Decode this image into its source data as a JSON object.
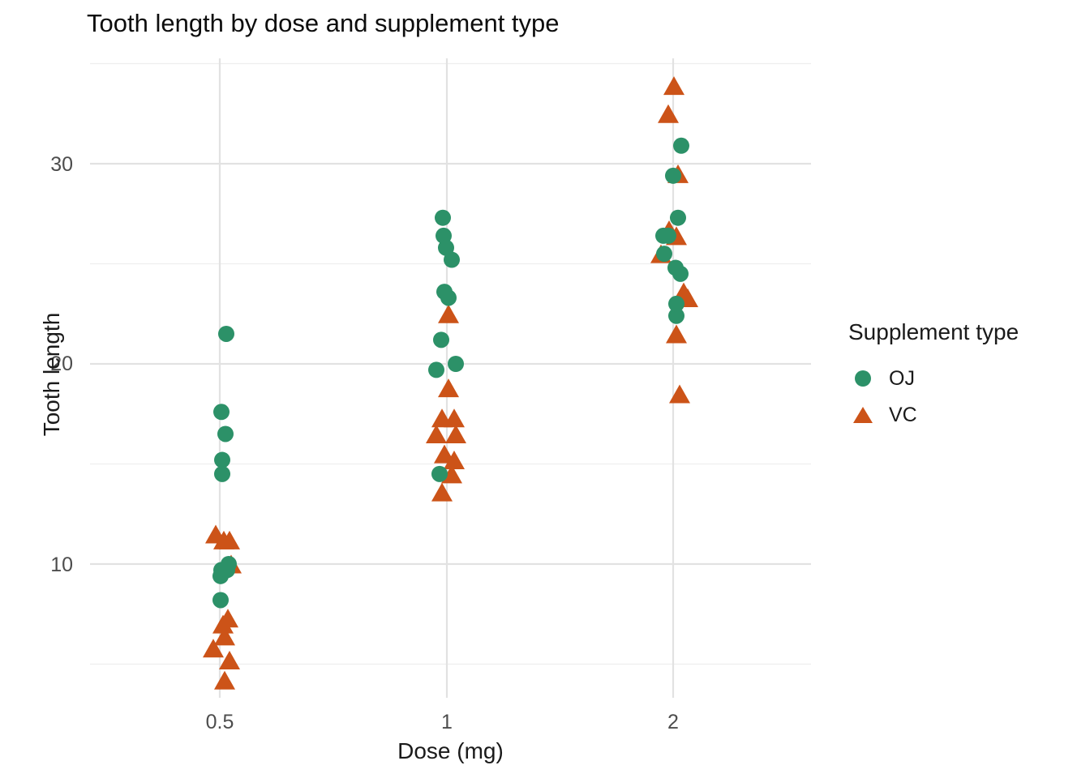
{
  "title": "Tooth length by dose and supplement type",
  "x_axis": {
    "label": "Dose (mg)",
    "ticks": [
      "0.5",
      "1",
      "2"
    ]
  },
  "y_axis": {
    "label": "Tooth length",
    "ticks": [
      "10",
      "20",
      "30"
    ]
  },
  "legend": {
    "title": "Supplement type",
    "items": [
      {
        "label": "OJ",
        "shape": "circle",
        "color": "#2c9168"
      },
      {
        "label": "VC",
        "shape": "triangle",
        "color": "#cc5318"
      }
    ]
  },
  "colors": {
    "background": "#ffffff",
    "grid_major": "#e2e2e2",
    "grid_minor": "#eeeeee",
    "tick_label": "#4d4d4d",
    "text": "#1a1a1a",
    "oj_green": "#2c9168",
    "vc_orange": "#cc5318"
  },
  "chart_data": {
    "type": "scatter",
    "title": "Tooth length by dose and supplement type",
    "xlabel": "Dose (mg)",
    "ylabel": "Tooth length",
    "x_ticks": [
      0.5,
      1,
      2
    ],
    "x_scale": "log2 (doses equally spaced)",
    "y_ticks_major": [
      10,
      20,
      30
    ],
    "y_ticks_minor": [
      5,
      15,
      25,
      35
    ],
    "ylim": [
      3.3,
      35.3
    ],
    "grid": true,
    "legend_position": "right",
    "marker_size": {
      "circle_radius": 10,
      "triangle_w": 26,
      "triangle_h": 23
    },
    "series": [
      {
        "name": "OJ",
        "shape": "circle",
        "color": "#2c9168",
        "points": [
          {
            "dose": 0.5,
            "len": 15.2,
            "dx": 3
          },
          {
            "dose": 0.5,
            "len": 21.5,
            "dx": 8
          },
          {
            "dose": 0.5,
            "len": 17.6,
            "dx": 2
          },
          {
            "dose": 0.5,
            "len": 9.7,
            "dx": 2
          },
          {
            "dose": 0.5,
            "len": 14.5,
            "dx": 3
          },
          {
            "dose": 0.5,
            "len": 10.0,
            "dx": 11
          },
          {
            "dose": 0.5,
            "len": 8.2,
            "dx": 1
          },
          {
            "dose": 0.5,
            "len": 9.4,
            "dx": 1
          },
          {
            "dose": 0.5,
            "len": 16.5,
            "dx": 7
          },
          {
            "dose": 0.5,
            "len": 9.7,
            "dx": 9
          },
          {
            "dose": 1,
            "len": 19.7,
            "dx": -13
          },
          {
            "dose": 1,
            "len": 23.3,
            "dx": 2
          },
          {
            "dose": 1,
            "len": 23.6,
            "dx": -3
          },
          {
            "dose": 1,
            "len": 26.4,
            "dx": -4
          },
          {
            "dose": 1,
            "len": 20.0,
            "dx": 11
          },
          {
            "dose": 1,
            "len": 25.2,
            "dx": 6
          },
          {
            "dose": 1,
            "len": 25.8,
            "dx": -1
          },
          {
            "dose": 1,
            "len": 21.2,
            "dx": -7
          },
          {
            "dose": 1,
            "len": 14.5,
            "dx": -9
          },
          {
            "dose": 1,
            "len": 27.3,
            "dx": -5
          },
          {
            "dose": 2,
            "len": 25.5,
            "dx": -11
          },
          {
            "dose": 2,
            "len": 26.4,
            "dx": -12
          },
          {
            "dose": 2,
            "len": 22.4,
            "dx": 4
          },
          {
            "dose": 2,
            "len": 24.5,
            "dx": 9
          },
          {
            "dose": 2,
            "len": 24.8,
            "dx": 3
          },
          {
            "dose": 2,
            "len": 30.9,
            "dx": 10
          },
          {
            "dose": 2,
            "len": 26.4,
            "dx": -6
          },
          {
            "dose": 2,
            "len": 27.3,
            "dx": 6
          },
          {
            "dose": 2,
            "len": 29.4,
            "dx": 0
          },
          {
            "dose": 2,
            "len": 23.0,
            "dx": 4
          }
        ]
      },
      {
        "name": "VC",
        "shape": "triangle",
        "color": "#cc5318",
        "points": [
          {
            "dose": 0.5,
            "len": 4.2,
            "dx": 6
          },
          {
            "dose": 0.5,
            "len": 11.5,
            "dx": -5
          },
          {
            "dose": 0.5,
            "len": 7.3,
            "dx": 10
          },
          {
            "dose": 0.5,
            "len": 5.8,
            "dx": -8
          },
          {
            "dose": 0.5,
            "len": 6.4,
            "dx": 6
          },
          {
            "dose": 0.5,
            "len": 10.0,
            "dx": 14
          },
          {
            "dose": 0.5,
            "len": 11.2,
            "dx": 5
          },
          {
            "dose": 0.5,
            "len": 11.2,
            "dx": 12
          },
          {
            "dose": 0.5,
            "len": 5.2,
            "dx": 12
          },
          {
            "dose": 0.5,
            "len": 7.0,
            "dx": 4
          },
          {
            "dose": 1,
            "len": 16.5,
            "dx": -13
          },
          {
            "dose": 1,
            "len": 16.5,
            "dx": 11
          },
          {
            "dose": 1,
            "len": 15.2,
            "dx": 9
          },
          {
            "dose": 1,
            "len": 17.3,
            "dx": -6
          },
          {
            "dose": 1,
            "len": 22.5,
            "dx": 2
          },
          {
            "dose": 1,
            "len": 17.3,
            "dx": 9
          },
          {
            "dose": 1,
            "len": 13.6,
            "dx": -6
          },
          {
            "dose": 1,
            "len": 14.5,
            "dx": 6
          },
          {
            "dose": 1,
            "len": 18.8,
            "dx": 2
          },
          {
            "dose": 1,
            "len": 15.5,
            "dx": -3
          },
          {
            "dose": 2,
            "len": 23.6,
            "dx": 13
          },
          {
            "dose": 2,
            "len": 18.5,
            "dx": 8
          },
          {
            "dose": 2,
            "len": 33.9,
            "dx": 1
          },
          {
            "dose": 2,
            "len": 25.5,
            "dx": -15
          },
          {
            "dose": 2,
            "len": 26.4,
            "dx": 4
          },
          {
            "dose": 2,
            "len": 32.5,
            "dx": -6
          },
          {
            "dose": 2,
            "len": 26.7,
            "dx": -5
          },
          {
            "dose": 2,
            "len": 21.5,
            "dx": 4
          },
          {
            "dose": 2,
            "len": 23.3,
            "dx": 18
          },
          {
            "dose": 2,
            "len": 29.5,
            "dx": 6
          }
        ]
      }
    ]
  }
}
